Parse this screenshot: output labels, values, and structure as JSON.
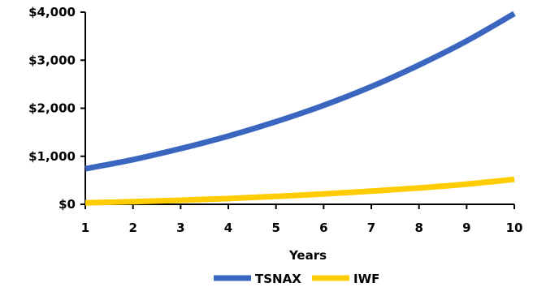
{
  "chart_data": {
    "type": "line",
    "x": [
      1,
      2,
      3,
      4,
      5,
      6,
      7,
      8,
      9,
      10
    ],
    "xlabel": "Years",
    "ylabel": "",
    "ylim": [
      0,
      4000
    ],
    "yticks": [
      "$0",
      "$1,000",
      "$2,000",
      "$3,000",
      "$4,000"
    ],
    "ytick_values": [
      0,
      1000,
      2000,
      3000,
      4000
    ],
    "xticks": [
      "1",
      "2",
      "3",
      "4",
      "5",
      "6",
      "7",
      "8",
      "9",
      "10"
    ],
    "grid": false,
    "legend": "bottom",
    "series": [
      {
        "name": "TSNAX",
        "color": "#3a66c0",
        "values": [
          740,
          930,
          1160,
          1420,
          1720,
          2060,
          2450,
          2900,
          3400,
          3970
        ]
      },
      {
        "name": "IWF",
        "color": "#ffcc00",
        "values": [
          30,
          55,
          85,
          120,
          165,
          215,
          275,
          340,
          420,
          520
        ]
      }
    ]
  }
}
